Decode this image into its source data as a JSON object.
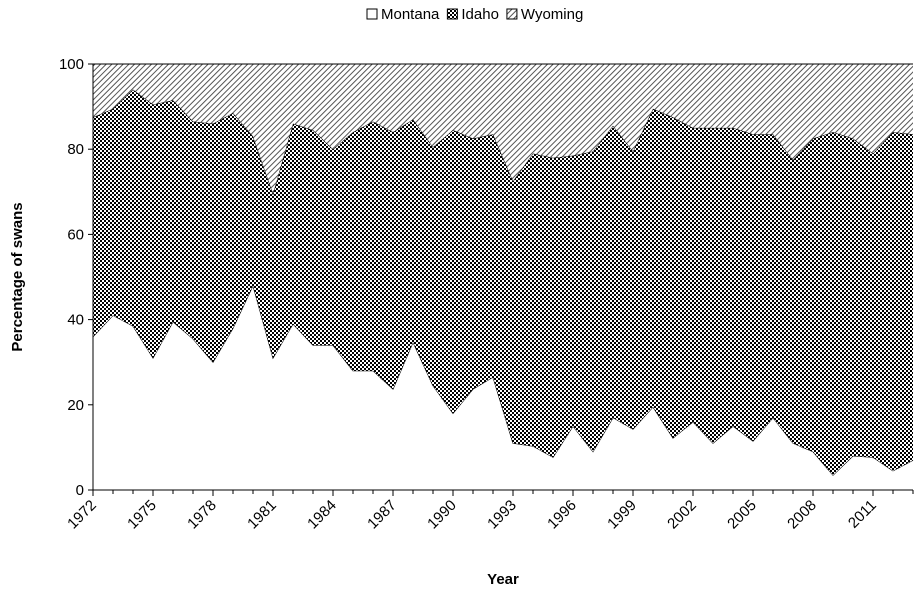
{
  "chart_data": {
    "type": "stacked_area",
    "x_label": "Year",
    "y_label": "Percentage of swans",
    "x": [
      1972,
      1973,
      1974,
      1975,
      1976,
      1977,
      1978,
      1979,
      1980,
      1981,
      1982,
      1983,
      1984,
      1985,
      1986,
      1987,
      1988,
      1989,
      1990,
      1991,
      1992,
      1993,
      1994,
      1995,
      1996,
      1997,
      1998,
      1999,
      2000,
      2001,
      2002,
      2003,
      2004,
      2005,
      2006,
      2007,
      2008,
      2009,
      2010,
      2011,
      2012,
      2013
    ],
    "series": [
      {
        "name": "Montana",
        "color": "#ffffff",
        "pattern": "solid",
        "values": [
          36,
          41,
          38.5,
          31,
          39.5,
          35.5,
          30,
          38,
          48,
          31,
          39,
          34,
          34,
          28,
          28,
          23.7,
          34.7,
          24.5,
          18,
          23.7,
          26.5,
          11,
          10.3,
          7.7,
          15,
          9,
          17,
          14.3,
          19.5,
          12.2,
          16,
          11,
          15,
          11.5,
          17,
          11,
          9,
          3.5,
          8,
          7.7,
          4.5,
          7
        ]
      },
      {
        "name": "Idaho",
        "color": "#000000",
        "pattern": "checker",
        "values": [
          51.5,
          48.5,
          55.5,
          59.5,
          52,
          51,
          56,
          50.5,
          35,
          38.5,
          47,
          50.5,
          46,
          56,
          58.5,
          60.3,
          52.3,
          56,
          66.5,
          58.8,
          57,
          61.5,
          68.7,
          70.3,
          63.5,
          70.5,
          68.5,
          65.2,
          70,
          75.3,
          69,
          74,
          70,
          72,
          66.5,
          66.5,
          73.5,
          80.5,
          74.5,
          71.3,
          79.5,
          76.5
        ]
      },
      {
        "name": "Wyoming",
        "color": "#555555",
        "pattern": "hatch",
        "values": [
          12.5,
          10.5,
          6,
          9.5,
          8.5,
          13.5,
          14,
          11.5,
          17,
          30.5,
          14,
          15.5,
          20,
          16,
          13.5,
          16,
          13,
          19.5,
          15.5,
          17.5,
          16.5,
          27.5,
          21,
          22,
          21.5,
          20.5,
          14.5,
          20.5,
          10.5,
          12.5,
          15,
          15,
          15,
          16.5,
          16.5,
          22.5,
          17.5,
          16,
          17.5,
          21,
          16,
          16.5
        ]
      }
    ],
    "xlim": [
      1972,
      2013
    ],
    "xticks": [
      1972,
      1975,
      1978,
      1981,
      1984,
      1987,
      1990,
      1993,
      1996,
      1999,
      2002,
      2005,
      2008,
      2011
    ],
    "ylim": [
      0,
      100
    ],
    "yticks": [
      0,
      20,
      40,
      60,
      80,
      100
    ],
    "legend": "top"
  }
}
